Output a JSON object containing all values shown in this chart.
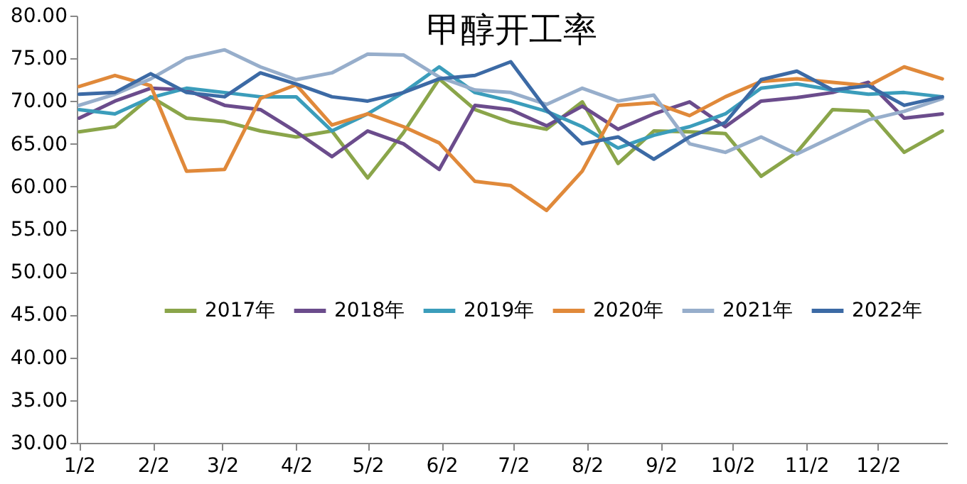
{
  "chart_data": {
    "type": "line",
    "title": "甲醇开工率",
    "x": [
      "--01-02",
      "--01-17",
      "--02-01",
      "--02-16",
      "--03-03",
      "--03-18",
      "--04-02",
      "--04-17",
      "--05-02",
      "--05-17",
      "--06-01",
      "--06-16",
      "--07-01",
      "--07-16",
      "--07-31",
      "--08-15",
      "--08-30",
      "--09-14",
      "--09-29",
      "--10-14",
      "--10-29",
      "--11-13",
      "--11-28",
      "--12-13",
      "--12-29"
    ],
    "series": [
      {
        "name": "2017年",
        "color": "#8aa54a",
        "values": [
          66.4,
          67,
          70.5,
          68,
          67.6,
          66.5,
          65.8,
          66.5,
          61,
          66.3,
          72.6,
          69,
          67.5,
          66.7,
          69.9,
          62.7,
          66.5,
          66.4,
          66.2,
          61.2,
          64,
          69,
          68.8,
          64,
          66.5
        ]
      },
      {
        "name": "2018年",
        "color": "#6b4c8c",
        "values": [
          68,
          70,
          71.5,
          71.3,
          69.5,
          69,
          66.4,
          63.5,
          66.5,
          65,
          62,
          69.5,
          69,
          67.1,
          69.4,
          66.7,
          68.5,
          69.9,
          67,
          70,
          70.4,
          71,
          72.2,
          68,
          68.5
        ]
      },
      {
        "name": "2019年",
        "color": "#3b9dbb",
        "values": [
          69,
          68.5,
          70.4,
          71.5,
          71,
          70.5,
          70.5,
          66.5,
          68.5,
          71,
          74,
          71,
          70,
          68.8,
          67,
          64.5,
          66,
          67,
          68.5,
          71.5,
          72,
          71.3,
          70.8,
          71,
          70.5
        ]
      },
      {
        "name": "2020年",
        "color": "#e0893a",
        "values": [
          71.7,
          73,
          71.8,
          61.8,
          62,
          70.3,
          71.9,
          67.2,
          68.5,
          67,
          65.1,
          60.6,
          60.1,
          57.2,
          61.8,
          69.5,
          69.8,
          68.3,
          70.5,
          72.3,
          72.6,
          72.2,
          71.8,
          74,
          72.6
        ]
      },
      {
        "name": "2021年",
        "color": "#97aecb",
        "values": [
          69.5,
          70.8,
          72.6,
          75,
          76,
          74,
          72.5,
          73.3,
          75.5,
          75.4,
          72.8,
          71.3,
          71,
          69.6,
          71.5,
          70,
          70.7,
          65,
          64,
          65.8,
          63.8,
          65.8,
          67.8,
          68.8,
          70.3
        ]
      },
      {
        "name": "2022年",
        "color": "#3c6aa5",
        "values": [
          70.8,
          71,
          73.2,
          71,
          70.5,
          73.3,
          72,
          70.5,
          70,
          71,
          72.6,
          73,
          74.6,
          69,
          65,
          65.8,
          63.2,
          65.8,
          67.5,
          72.5,
          73.5,
          71.3,
          71.8,
          69.5,
          70.5
        ]
      }
    ],
    "xlim": [
      "--01-01",
      "--12-31"
    ],
    "xticks": [
      {
        "value": "--01-02",
        "label": "1/2"
      },
      {
        "value": "--02-02",
        "label": "2/2"
      },
      {
        "value": "--03-02",
        "label": "3/2"
      },
      {
        "value": "--04-02",
        "label": "4/2"
      },
      {
        "value": "--05-02",
        "label": "5/2"
      },
      {
        "value": "--06-02",
        "label": "6/2"
      },
      {
        "value": "--07-02",
        "label": "7/2"
      },
      {
        "value": "--08-02",
        "label": "8/2"
      },
      {
        "value": "--09-02",
        "label": "9/2"
      },
      {
        "value": "--10-02",
        "label": "10/2"
      },
      {
        "value": "--11-02",
        "label": "11/2"
      },
      {
        "value": "--12-02",
        "label": "12/2"
      }
    ],
    "ylim": [
      30,
      80
    ],
    "yticks": [
      {
        "value": 30,
        "label": "30.00"
      },
      {
        "value": 35,
        "label": "35.00"
      },
      {
        "value": 40,
        "label": "40.00"
      },
      {
        "value": 45,
        "label": "45.00"
      },
      {
        "value": 50,
        "label": "50.00"
      },
      {
        "value": 55,
        "label": "55.00"
      },
      {
        "value": 60,
        "label": "60.00"
      },
      {
        "value": 65,
        "label": "65.00"
      },
      {
        "value": 70,
        "label": "70.00"
      },
      {
        "value": 75,
        "label": "75.00"
      },
      {
        "value": 80,
        "label": "80.00"
      }
    ],
    "grid": false,
    "legend": "bottom",
    "line_style": "solid"
  }
}
